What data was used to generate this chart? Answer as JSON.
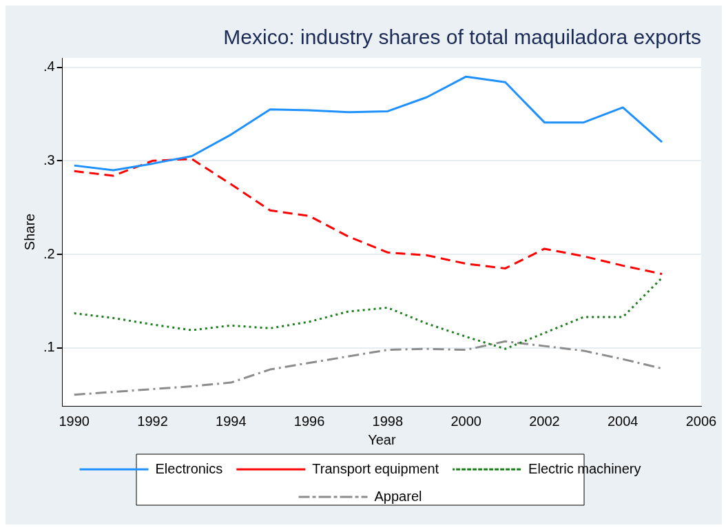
{
  "chart_data": {
    "type": "line",
    "title": "Mexico: industry shares of total maquiladora exports",
    "xlabel": "Year",
    "ylabel": "Share",
    "x": [
      1990,
      1991,
      1992,
      1993,
      1994,
      1995,
      1996,
      1997,
      1998,
      1999,
      2000,
      2001,
      2002,
      2003,
      2004,
      2005
    ],
    "series": [
      {
        "name": "Electronics",
        "color": "#1e90ff",
        "line_style": "solid",
        "values": [
          0.295,
          0.29,
          0.297,
          0.305,
          0.328,
          0.355,
          0.354,
          0.352,
          0.353,
          0.368,
          0.39,
          0.384,
          0.341,
          0.341,
          0.357,
          0.32
        ]
      },
      {
        "name": "Transport equipment",
        "color": "#ff0000",
        "line_style": "dashed",
        "values": [
          0.289,
          0.284,
          0.3,
          0.302,
          0.275,
          0.247,
          0.241,
          0.219,
          0.202,
          0.199,
          0.19,
          0.185,
          0.206,
          0.198,
          0.188,
          0.179
        ]
      },
      {
        "name": "Electric machinery",
        "color": "#1a7f1a",
        "line_style": "dotted",
        "values": [
          0.137,
          0.132,
          0.125,
          0.119,
          0.124,
          0.121,
          0.128,
          0.139,
          0.143,
          0.126,
          0.112,
          0.099,
          0.116,
          0.133,
          0.133,
          0.175
        ]
      },
      {
        "name": "Apparel",
        "color": "#8c8c8c",
        "line_style": "dashdot",
        "values": [
          0.05,
          0.053,
          0.056,
          0.059,
          0.063,
          0.077,
          0.084,
          0.091,
          0.098,
          0.099,
          0.098,
          0.107,
          0.102,
          0.097,
          0.088,
          0.078
        ]
      }
    ],
    "xlim": [
      1989.7,
      2006
    ],
    "xticks": [
      1990,
      1992,
      1994,
      1996,
      1998,
      2000,
      2002,
      2004,
      2006
    ],
    "ylim": [
      0.038,
      0.41
    ],
    "yticks": [
      {
        "value": 0.1,
        "label": ".1"
      },
      {
        "value": 0.2,
        "label": ".2"
      },
      {
        "value": 0.3,
        "label": ".3"
      },
      {
        "value": 0.4,
        "label": ".4"
      }
    ],
    "grid": "y",
    "legend": "bottom",
    "marker": "none"
  }
}
